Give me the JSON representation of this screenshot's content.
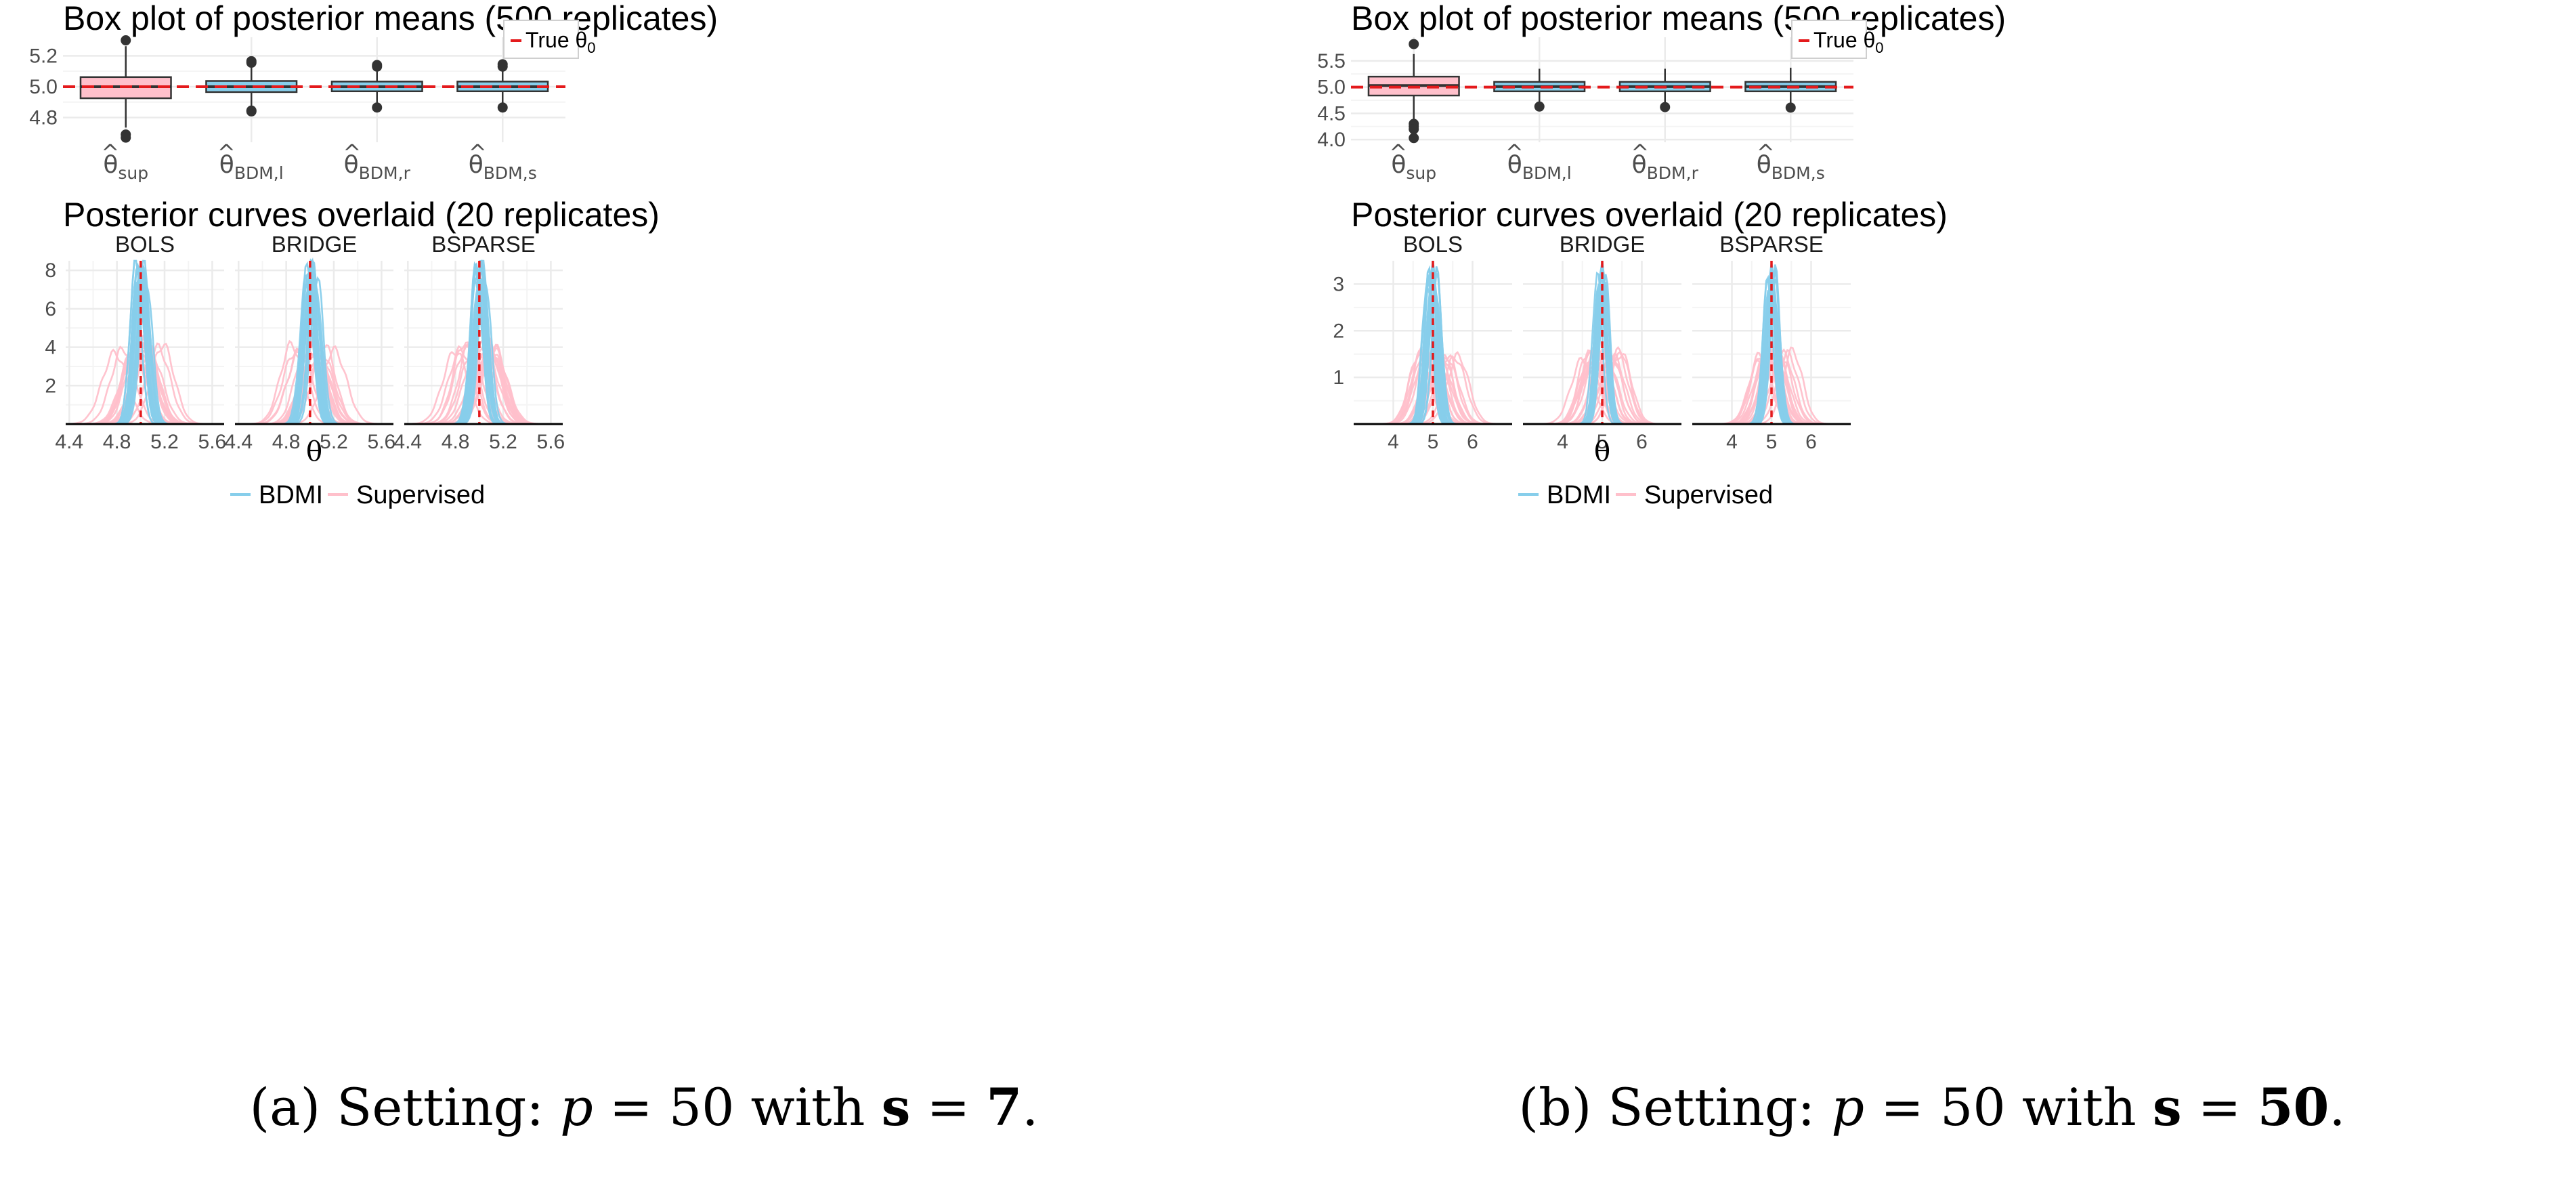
{
  "panels": [
    {
      "caption": {
        "prefix": "(a) Setting: ",
        "p_var": "p",
        "mid": " = 50 with ",
        "s_var": "s",
        "eq": " = ",
        "s_val": "7",
        "suffix": "."
      },
      "box": {
        "title": "Box plot of posterior means (500 replicates)",
        "legend_label": "True θ",
        "legend_sub": "0",
        "ylim": [
          4.64,
          5.32
        ],
        "yticks": [
          "4.8",
          "5.0",
          "5.2"
        ],
        "ytick_values": [
          4.8,
          5.0,
          5.2
        ],
        "estimators": [
          {
            "main": "θ",
            "sub": "sup",
            "q1": 4.925,
            "median": 5.0,
            "q3": 5.062,
            "whisker_low": 4.735,
            "whisker_high": 5.262,
            "outliers": [
              4.69,
              4.67,
              5.3
            ],
            "fill": "#ffc0cb"
          },
          {
            "main": "θ",
            "sub": "BDM,l",
            "q1": 4.965,
            "median": 5.0,
            "q3": 5.037,
            "whisker_low": 4.868,
            "whisker_high": 5.14,
            "outliers": [
              4.845,
              4.84,
              5.155,
              5.165
            ],
            "fill": "#87ceeb"
          },
          {
            "main": "θ",
            "sub": "BDM,r",
            "q1": 4.97,
            "median": 5.0,
            "q3": 5.033,
            "whisker_low": 4.88,
            "whisker_high": 5.12,
            "outliers": [
              4.865,
              5.13,
              5.14
            ],
            "fill": "#87ceeb"
          },
          {
            "main": "θ",
            "sub": "BDM,s",
            "q1": 4.97,
            "median": 5.0,
            "q3": 5.033,
            "whisker_low": 4.88,
            "whisker_high": 5.12,
            "outliers": [
              4.865,
              5.13,
              5.145
            ],
            "fill": "#87ceeb"
          }
        ],
        "true_value": 5.0
      },
      "curves": {
        "title": "Posterior curves overlaid (20 replicates)",
        "facets": [
          "BOLS",
          "BRIDGE",
          "BSPARSE"
        ],
        "xlim": [
          4.37,
          5.7
        ],
        "xticks": [
          "4.4",
          "4.8",
          "5.2",
          "5.6"
        ],
        "xtick_values": [
          4.4,
          4.8,
          5.2,
          5.6
        ],
        "ylim": [
          0,
          8.5
        ],
        "yticks": [
          "2",
          "4",
          "6",
          "8"
        ],
        "ytick_values": [
          2,
          4,
          6,
          8
        ],
        "xlabel": "θ",
        "true_value": 5.0,
        "bdmi_sd": 0.05,
        "sup_sd": 0.1
      },
      "legend": [
        {
          "label": "BDMI",
          "color": "#87ceeb"
        },
        {
          "label": "Supervised",
          "color": "#ffc0cb"
        }
      ]
    },
    {
      "caption": {
        "prefix": "(b) Setting: ",
        "p_var": "p",
        "mid": " = 50 with ",
        "s_var": "s",
        "eq": " = ",
        "s_val": "50",
        "suffix": "."
      },
      "box": {
        "title": "Box plot of posterior means (500 replicates)",
        "legend_label": "True θ",
        "legend_sub": "0",
        "ylim": [
          3.95,
          5.95
        ],
        "yticks": [
          "4.0",
          "4.5",
          "5.0",
          "5.5"
        ],
        "ytick_values": [
          4.0,
          4.5,
          5.0,
          5.5
        ],
        "estimators": [
          {
            "main": "θ",
            "sub": "sup",
            "q1": 4.84,
            "median": 5.03,
            "q3": 5.2,
            "whisker_low": 4.35,
            "whisker_high": 5.63,
            "outliers": [
              4.3,
              4.25,
              4.2,
              4.03,
              5.82
            ],
            "fill": "#ffc0cb"
          },
          {
            "main": "θ",
            "sub": "BDM,l",
            "q1": 4.92,
            "median": 5.01,
            "q3": 5.1,
            "whisker_low": 4.68,
            "whisker_high": 5.35,
            "outliers": [
              4.63
            ],
            "fill": "#87ceeb"
          },
          {
            "main": "θ",
            "sub": "BDM,r",
            "q1": 4.92,
            "median": 5.01,
            "q3": 5.1,
            "whisker_low": 4.68,
            "whisker_high": 5.35,
            "outliers": [
              4.62
            ],
            "fill": "#87ceeb"
          },
          {
            "main": "θ",
            "sub": "BDM,s",
            "q1": 4.92,
            "median": 5.01,
            "q3": 5.1,
            "whisker_low": 4.68,
            "whisker_high": 5.37,
            "outliers": [
              4.61
            ],
            "fill": "#87ceeb"
          }
        ],
        "true_value": 5.0
      },
      "curves": {
        "title": "Posterior curves overlaid (20 replicates)",
        "facets": [
          "BOLS",
          "BRIDGE",
          "BSPARSE"
        ],
        "xlim": [
          3.0,
          7.0
        ],
        "xticks": [
          "4",
          "5",
          "6"
        ],
        "xtick_values": [
          4,
          5,
          6
        ],
        "ylim": [
          0,
          3.5
        ],
        "yticks": [
          "1",
          "2",
          "3"
        ],
        "ytick_values": [
          1,
          2,
          3
        ],
        "xlabel": "θ",
        "true_value": 5.0,
        "bdmi_sd": 0.13,
        "sup_sd": 0.27
      },
      "legend": [
        {
          "label": "BDMI",
          "color": "#87ceeb"
        },
        {
          "label": "Supervised",
          "color": "#ffc0cb"
        }
      ]
    }
  ],
  "colors": {
    "bdmi": "#87ceeb",
    "supervised": "#ffc0cb",
    "true_line": "#e41a1c",
    "grid": "#ebebeb"
  }
}
